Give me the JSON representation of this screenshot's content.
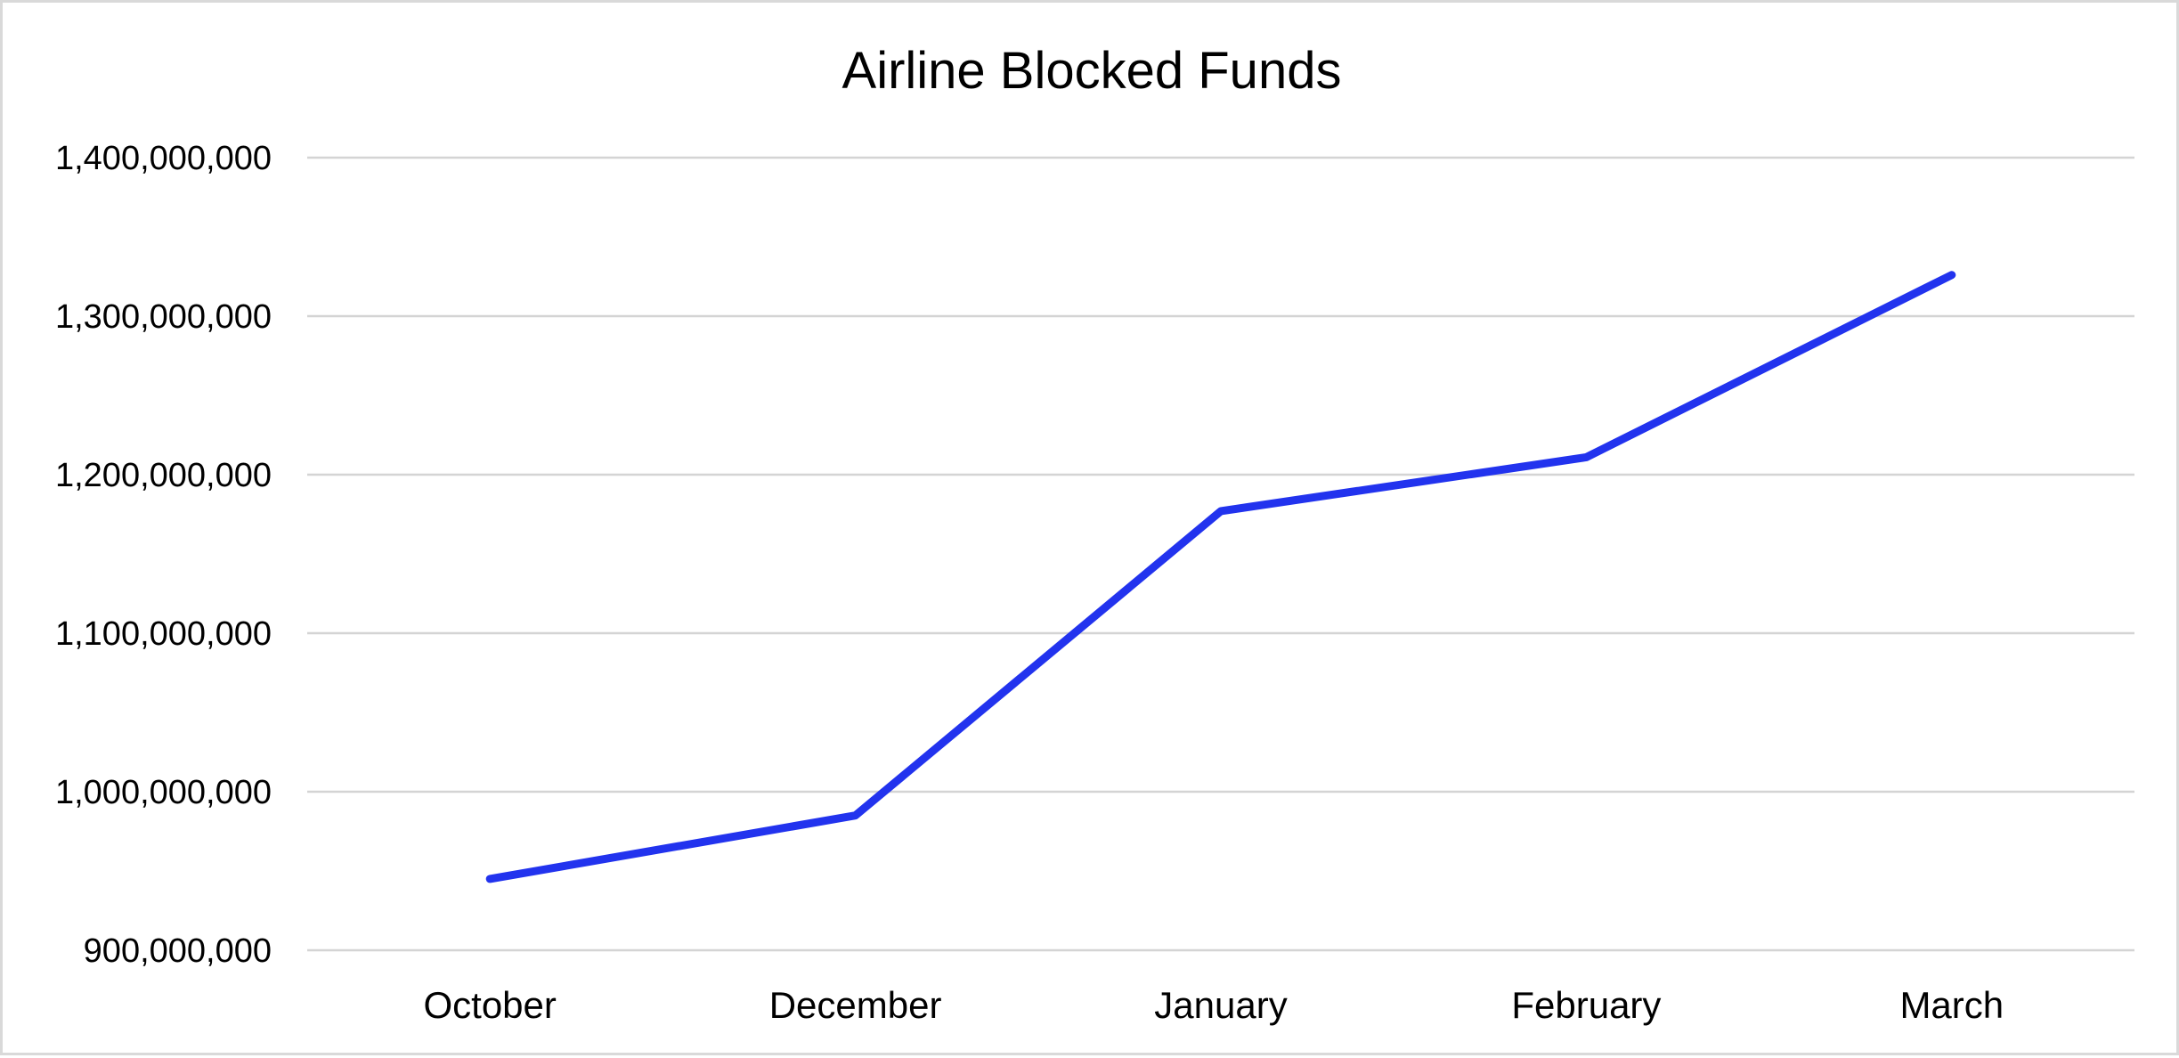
{
  "chart_data": {
    "type": "line",
    "title": "Airline Blocked Funds",
    "xlabel": "",
    "ylabel": "",
    "categories": [
      "October",
      "December",
      "January",
      "February",
      "March"
    ],
    "series": [
      {
        "values": [
          945000000,
          985000000,
          1177000000,
          1211000000,
          1326000000
        ],
        "color": "#2233ee"
      }
    ],
    "ylim": [
      900000000,
      1400000000
    ],
    "yticks": [
      900000000,
      1000000000,
      1100000000,
      1200000000,
      1300000000,
      1400000000
    ],
    "ytick_labels": [
      "900,000,000",
      "1,000,000,000",
      "1,100,000,000",
      "1,200,000,000",
      "1,300,000,000",
      "1,400,000,000"
    ],
    "grid": true,
    "legend": "none"
  }
}
